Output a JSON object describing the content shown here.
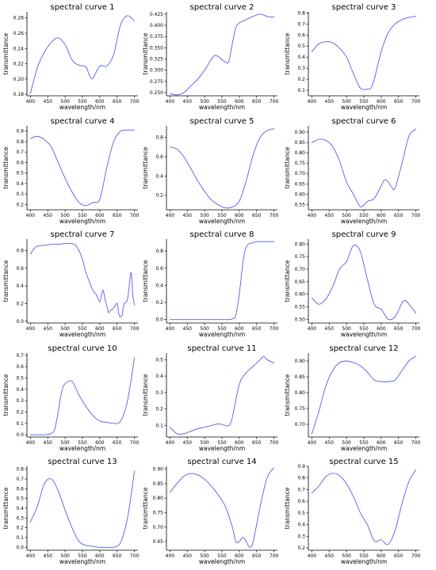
{
  "colors": {
    "line": "#5a5af0",
    "axis": "#000000",
    "background": "#ffffff"
  },
  "chart_data": [
    {
      "type": "line",
      "title": "spectral curve 1",
      "xlabel": "wavelength/nm",
      "ylabel": "transmittance",
      "xlim": [
        390,
        710
      ],
      "ylim": [
        0.178,
        0.288
      ],
      "xticks": [
        400,
        450,
        500,
        550,
        600,
        650,
        700
      ],
      "yticks": [
        0.18,
        0.2,
        0.22,
        0.24,
        0.26,
        0.28
      ],
      "series": [
        {
          "x": [
            400,
            420,
            440,
            460,
            480,
            500,
            520,
            540,
            560,
            570,
            580,
            600,
            620,
            640,
            660,
            680,
            700
          ],
          "y": [
            0.181,
            0.215,
            0.235,
            0.248,
            0.254,
            0.245,
            0.225,
            0.218,
            0.216,
            0.205,
            0.201,
            0.217,
            0.217,
            0.232,
            0.271,
            0.283,
            0.276
          ]
        }
      ]
    },
    {
      "type": "line",
      "title": "spectral curve 2",
      "xlabel": "wavelength/nm",
      "ylabel": "transmittance",
      "xlim": [
        390,
        710
      ],
      "ylim": [
        0.243,
        0.43
      ],
      "xticks": [
        400,
        450,
        500,
        550,
        600,
        650,
        700
      ],
      "yticks": [
        0.25,
        0.275,
        0.3,
        0.325,
        0.35,
        0.375,
        0.4,
        0.425
      ],
      "series": [
        {
          "x": [
            400,
            420,
            440,
            460,
            480,
            500,
            520,
            530,
            540,
            560,
            570,
            580,
            590,
            600,
            620,
            640,
            660,
            680,
            700
          ],
          "y": [
            0.248,
            0.245,
            0.25,
            0.265,
            0.28,
            0.3,
            0.325,
            0.333,
            0.33,
            0.318,
            0.32,
            0.36,
            0.395,
            0.405,
            0.413,
            0.42,
            0.425,
            0.42,
            0.418
          ]
        }
      ]
    },
    {
      "type": "line",
      "title": "spectral curve 3",
      "xlabel": "wavelength/nm",
      "ylabel": "transmittance",
      "xlim": [
        390,
        710
      ],
      "ylim": [
        0.05,
        0.81
      ],
      "xticks": [
        400,
        450,
        500,
        550,
        600,
        650,
        700
      ],
      "yticks": [
        0.1,
        0.2,
        0.3,
        0.4,
        0.5,
        0.6,
        0.7,
        0.8
      ],
      "series": [
        {
          "x": [
            400,
            420,
            440,
            460,
            480,
            500,
            520,
            540,
            560,
            570,
            580,
            600,
            620,
            640,
            660,
            680,
            700
          ],
          "y": [
            0.45,
            0.52,
            0.54,
            0.53,
            0.48,
            0.4,
            0.25,
            0.12,
            0.11,
            0.12,
            0.2,
            0.45,
            0.62,
            0.7,
            0.74,
            0.76,
            0.77
          ]
        }
      ]
    },
    {
      "type": "line",
      "title": "spectral curve 4",
      "xlabel": "wavelength/nm",
      "ylabel": "transmittance",
      "xlim": [
        390,
        710
      ],
      "ylim": [
        0.15,
        0.95
      ],
      "xticks": [
        400,
        450,
        500,
        550,
        600,
        650,
        700
      ],
      "yticks": [
        0.2,
        0.3,
        0.4,
        0.5,
        0.6,
        0.7,
        0.8,
        0.9
      ],
      "series": [
        {
          "x": [
            400,
            420,
            440,
            460,
            480,
            500,
            520,
            540,
            560,
            580,
            600,
            620,
            640,
            660,
            680,
            700
          ],
          "y": [
            0.83,
            0.85,
            0.82,
            0.75,
            0.6,
            0.45,
            0.32,
            0.22,
            0.19,
            0.22,
            0.25,
            0.55,
            0.8,
            0.9,
            0.91,
            0.91
          ]
        }
      ]
    },
    {
      "type": "line",
      "title": "spectral curve 5",
      "xlabel": "wavelength/nm",
      "ylabel": "transmittance",
      "xlim": [
        390,
        710
      ],
      "ylim": [
        0.05,
        0.92
      ],
      "xticks": [
        400,
        450,
        500,
        550,
        600,
        650,
        700
      ],
      "yticks": [
        0.2,
        0.4,
        0.6,
        0.8
      ],
      "series": [
        {
          "x": [
            400,
            420,
            440,
            460,
            480,
            500,
            520,
            540,
            560,
            580,
            600,
            620,
            640,
            660,
            680,
            700
          ],
          "y": [
            0.7,
            0.68,
            0.6,
            0.48,
            0.35,
            0.24,
            0.15,
            0.1,
            0.07,
            0.08,
            0.14,
            0.35,
            0.62,
            0.8,
            0.87,
            0.89
          ]
        }
      ]
    },
    {
      "type": "line",
      "title": "spectral curve 6",
      "xlabel": "wavelength/nm",
      "ylabel": "transmittance",
      "xlim": [
        390,
        710
      ],
      "ylim": [
        0.525,
        0.93
      ],
      "xticks": [
        400,
        450,
        500,
        550,
        600,
        650,
        700
      ],
      "yticks": [
        0.55,
        0.6,
        0.65,
        0.7,
        0.75,
        0.8,
        0.85,
        0.9
      ],
      "series": [
        {
          "x": [
            400,
            420,
            440,
            460,
            480,
            500,
            520,
            540,
            560,
            580,
            600,
            610,
            620,
            630,
            640,
            660,
            680,
            700
          ],
          "y": [
            0.85,
            0.865,
            0.86,
            0.83,
            0.76,
            0.66,
            0.6,
            0.54,
            0.565,
            0.58,
            0.64,
            0.67,
            0.66,
            0.635,
            0.63,
            0.75,
            0.88,
            0.915
          ]
        }
      ]
    },
    {
      "type": "line",
      "title": "spectral curve 7",
      "xlabel": "wavelength/nm",
      "ylabel": "transmittance",
      "xlim": [
        390,
        710
      ],
      "ylim": [
        -0.02,
        0.93
      ],
      "xticks": [
        400,
        450,
        500,
        550,
        600,
        650,
        700
      ],
      "yticks": [
        0.0,
        0.2,
        0.4,
        0.6,
        0.8
      ],
      "series": [
        {
          "x": [
            400,
            410,
            420,
            440,
            460,
            480,
            500,
            520,
            530,
            540,
            550,
            560,
            570,
            580,
            590,
            600,
            605,
            610,
            615,
            620,
            625,
            630,
            640,
            650,
            655,
            660,
            665,
            670,
            680,
            690,
            695,
            700
          ],
          "y": [
            0.76,
            0.82,
            0.85,
            0.86,
            0.87,
            0.87,
            0.88,
            0.88,
            0.86,
            0.8,
            0.7,
            0.55,
            0.45,
            0.35,
            0.3,
            0.22,
            0.3,
            0.35,
            0.25,
            0.18,
            0.1,
            0.12,
            0.15,
            0.2,
            0.08,
            0.05,
            0.08,
            0.2,
            0.25,
            0.55,
            0.3,
            0.18
          ]
        }
      ]
    },
    {
      "type": "line",
      "title": "spectral curve 8",
      "xlabel": "wavelength/nm",
      "ylabel": "transmittance",
      "xlim": [
        390,
        710
      ],
      "ylim": [
        -0.04,
        0.94
      ],
      "xticks": [
        400,
        450,
        500,
        550,
        600,
        650,
        700
      ],
      "yticks": [
        0.0,
        0.2,
        0.4,
        0.6,
        0.8
      ],
      "series": [
        {
          "x": [
            400,
            450,
            500,
            550,
            570,
            580,
            590,
            600,
            610,
            620,
            640,
            660,
            680,
            700
          ],
          "y": [
            0.0,
            0.0,
            0.0,
            0.0,
            0.0,
            0.01,
            0.05,
            0.3,
            0.65,
            0.85,
            0.9,
            0.91,
            0.91,
            0.91
          ]
        }
      ]
    },
    {
      "type": "line",
      "title": "spectral curve 9",
      "xlabel": "wavelength/nm",
      "ylabel": "transmittance",
      "xlim": [
        390,
        710
      ],
      "ylim": [
        0.485,
        0.82
      ],
      "xticks": [
        400,
        450,
        500,
        550,
        600,
        650,
        700
      ],
      "yticks": [
        0.5,
        0.55,
        0.6,
        0.65,
        0.7,
        0.75,
        0.8
      ],
      "series": [
        {
          "x": [
            400,
            420,
            440,
            460,
            480,
            500,
            520,
            540,
            560,
            580,
            600,
            620,
            640,
            660,
            670,
            680,
            700
          ],
          "y": [
            0.585,
            0.56,
            0.58,
            0.63,
            0.7,
            0.73,
            0.795,
            0.77,
            0.66,
            0.56,
            0.54,
            0.5,
            0.51,
            0.565,
            0.575,
            0.56,
            0.525
          ]
        }
      ]
    },
    {
      "type": "line",
      "title": "spectral curve 10",
      "xlabel": "wavelength/nm",
      "ylabel": "transmittance",
      "xlim": [
        390,
        710
      ],
      "ylim": [
        -0.02,
        0.72
      ],
      "xticks": [
        400,
        450,
        500,
        550,
        600,
        650,
        700
      ],
      "yticks": [
        0.0,
        0.1,
        0.2,
        0.3,
        0.4,
        0.5,
        0.6,
        0.7
      ],
      "series": [
        {
          "x": [
            400,
            420,
            440,
            460,
            470,
            480,
            490,
            500,
            520,
            540,
            560,
            580,
            600,
            620,
            640,
            660,
            680,
            700
          ],
          "y": [
            0.0,
            0.0,
            0.0,
            0.01,
            0.05,
            0.2,
            0.38,
            0.45,
            0.47,
            0.35,
            0.25,
            0.17,
            0.12,
            0.11,
            0.1,
            0.12,
            0.3,
            0.68
          ]
        }
      ]
    },
    {
      "type": "line",
      "title": "spectral curve 11",
      "xlabel": "wavelength/nm",
      "ylabel": "transmittance",
      "xlim": [
        390,
        710
      ],
      "ylim": [
        0.03,
        0.54
      ],
      "xticks": [
        400,
        450,
        500,
        550,
        600,
        650,
        700
      ],
      "yticks": [
        0.1,
        0.2,
        0.3,
        0.4,
        0.5
      ],
      "series": [
        {
          "x": [
            400,
            420,
            440,
            460,
            480,
            500,
            520,
            540,
            560,
            570,
            580,
            600,
            620,
            640,
            660,
            670,
            680,
            700
          ],
          "y": [
            0.09,
            0.05,
            0.05,
            0.065,
            0.08,
            0.09,
            0.1,
            0.11,
            0.1,
            0.1,
            0.15,
            0.35,
            0.42,
            0.46,
            0.5,
            0.52,
            0.5,
            0.48
          ]
        }
      ]
    },
    {
      "type": "line",
      "title": "spectral curve 12",
      "xlabel": "wavelength/nm",
      "ylabel": "transmittance",
      "xlim": [
        390,
        710
      ],
      "ylim": [
        0.66,
        0.925
      ],
      "xticks": [
        400,
        450,
        500,
        550,
        600,
        650,
        700
      ],
      "yticks": [
        0.7,
        0.75,
        0.8,
        0.85,
        0.9
      ],
      "series": [
        {
          "x": [
            400,
            420,
            440,
            460,
            480,
            500,
            520,
            540,
            560,
            580,
            600,
            620,
            640,
            660,
            680,
            700
          ],
          "y": [
            0.67,
            0.74,
            0.82,
            0.87,
            0.895,
            0.9,
            0.895,
            0.885,
            0.865,
            0.84,
            0.835,
            0.835,
            0.84,
            0.87,
            0.9,
            0.915
          ]
        }
      ]
    },
    {
      "type": "line",
      "title": "spectral curve 13",
      "xlabel": "wavelength/nm",
      "ylabel": "transmittance",
      "xlim": [
        390,
        710
      ],
      "ylim": [
        -0.03,
        0.83
      ],
      "xticks": [
        400,
        450,
        500,
        550,
        600,
        650,
        700
      ],
      "yticks": [
        0.0,
        0.1,
        0.2,
        0.3,
        0.4,
        0.5,
        0.6,
        0.7,
        0.8
      ],
      "series": [
        {
          "x": [
            400,
            420,
            440,
            460,
            480,
            500,
            520,
            540,
            560,
            580,
            600,
            620,
            640,
            660,
            680,
            700
          ],
          "y": [
            0.26,
            0.42,
            0.65,
            0.7,
            0.58,
            0.38,
            0.2,
            0.06,
            0.02,
            0.01,
            0.0,
            0.0,
            0.0,
            0.05,
            0.3,
            0.78
          ]
        }
      ]
    },
    {
      "type": "line",
      "title": "spectral curve 14",
      "xlabel": "wavelength/nm",
      "ylabel": "transmittance",
      "xlim": [
        390,
        710
      ],
      "ylim": [
        0.62,
        0.91
      ],
      "xticks": [
        400,
        450,
        500,
        550,
        600,
        650,
        700
      ],
      "yticks": [
        0.65,
        0.7,
        0.75,
        0.8,
        0.85,
        0.9
      ],
      "series": [
        {
          "x": [
            400,
            420,
            440,
            460,
            480,
            500,
            520,
            540,
            560,
            580,
            590,
            600,
            610,
            620,
            630,
            640,
            660,
            680,
            700
          ],
          "y": [
            0.82,
            0.85,
            0.875,
            0.885,
            0.88,
            0.865,
            0.84,
            0.81,
            0.77,
            0.7,
            0.65,
            0.65,
            0.665,
            0.65,
            0.63,
            0.65,
            0.77,
            0.87,
            0.905
          ]
        }
      ]
    },
    {
      "type": "line",
      "title": "spectral curve 15",
      "xlabel": "wavelength/nm",
      "ylabel": "transmittance",
      "xlim": [
        390,
        710
      ],
      "ylim": [
        0.18,
        0.9
      ],
      "xticks": [
        400,
        450,
        500,
        550,
        600,
        650,
        700
      ],
      "yticks": [
        0.2,
        0.3,
        0.4,
        0.5,
        0.6,
        0.7,
        0.8,
        0.9
      ],
      "series": [
        {
          "x": [
            400,
            420,
            440,
            460,
            480,
            500,
            520,
            540,
            560,
            580,
            600,
            620,
            640,
            660,
            680,
            700
          ],
          "y": [
            0.67,
            0.73,
            0.81,
            0.84,
            0.82,
            0.75,
            0.64,
            0.5,
            0.4,
            0.26,
            0.27,
            0.23,
            0.35,
            0.58,
            0.77,
            0.87
          ]
        }
      ]
    }
  ]
}
